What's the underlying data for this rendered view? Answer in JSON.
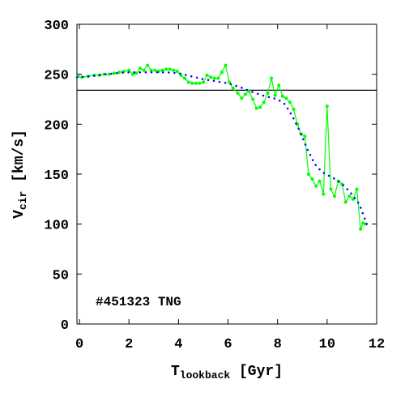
{
  "chart_data": {
    "type": "line",
    "title": "",
    "xlabel": "T",
    "xlabel_sub": "lookback",
    "xlabel_unit": " [Gyr]",
    "ylabel": "V",
    "ylabel_sub": "cir",
    "ylabel_unit": " [km/s]",
    "xlim": [
      -0.1,
      12
    ],
    "ylim": [
      0,
      300
    ],
    "xticks": [
      0,
      2,
      4,
      6,
      8,
      10,
      12
    ],
    "yticks": [
      0,
      50,
      100,
      150,
      200,
      250,
      300
    ],
    "annotation": "#451323 TNG",
    "hline": {
      "y": 234,
      "color": "#000000"
    },
    "series": [
      {
        "style": "line+markers",
        "color": "#00ff00",
        "x": [
          -0.05,
          0.1,
          0.35,
          0.6,
          0.8,
          1.0,
          1.2,
          1.4,
          1.6,
          1.8,
          2.0,
          2.15,
          2.3,
          2.45,
          2.6,
          2.75,
          2.9,
          3.05,
          3.2,
          3.35,
          3.5,
          3.65,
          3.8,
          3.95,
          4.1,
          4.25,
          4.4,
          4.55,
          4.7,
          4.85,
          5.0,
          5.15,
          5.3,
          5.45,
          5.6,
          5.75,
          5.9,
          6.05,
          6.2,
          6.4,
          6.55,
          6.7,
          6.85,
          7.0,
          7.15,
          7.3,
          7.45,
          7.6,
          7.75,
          7.9,
          8.05,
          8.2,
          8.35,
          8.5,
          8.65,
          8.8,
          8.95,
          9.1,
          9.25,
          9.4,
          9.55,
          9.7,
          9.85,
          10.0,
          10.15,
          10.3,
          10.45,
          10.6,
          10.75,
          10.9,
          11.05,
          11.2,
          11.35,
          11.45,
          11.55
        ],
        "y": [
          248,
          247,
          248,
          249,
          249,
          250,
          250,
          251,
          252,
          253,
          254,
          250,
          251,
          256,
          254,
          259,
          254,
          254,
          253,
          254,
          255,
          255,
          254,
          253,
          249,
          246,
          242,
          241,
          241,
          241,
          242,
          249,
          247,
          246,
          246,
          252,
          259,
          242,
          236,
          231,
          226,
          230,
          233,
          225,
          216,
          217,
          222,
          231,
          246,
          229,
          239,
          228,
          226,
          222,
          215,
          200,
          190,
          188,
          150,
          145,
          138,
          143,
          130,
          218,
          135,
          128,
          143,
          140,
          122,
          128,
          125,
          135,
          95,
          101,
          100
        ]
      },
      {
        "style": "dotted",
        "color": "#0000ff",
        "x": [
          -0.1,
          0.5,
          1.0,
          1.5,
          2.0,
          2.5,
          3.0,
          3.5,
          4.0,
          4.5,
          5.0,
          5.5,
          6.0,
          6.5,
          7.0,
          7.5,
          8.0,
          8.3,
          8.6,
          8.9,
          9.2,
          9.5,
          9.8,
          10.1,
          10.4,
          10.7,
          11.0,
          11.3,
          11.6
        ],
        "y": [
          247,
          248,
          250,
          251,
          252,
          252,
          252,
          252,
          251,
          248,
          245,
          243,
          241,
          237,
          232,
          228,
          225,
          220,
          208,
          193,
          175,
          160,
          152,
          148,
          144,
          138,
          130,
          120,
          100
        ]
      }
    ]
  },
  "colors": {
    "axis": "#000000",
    "line": "#00ff00",
    "fit": "#0000ff",
    "background": "#ffffff"
  }
}
